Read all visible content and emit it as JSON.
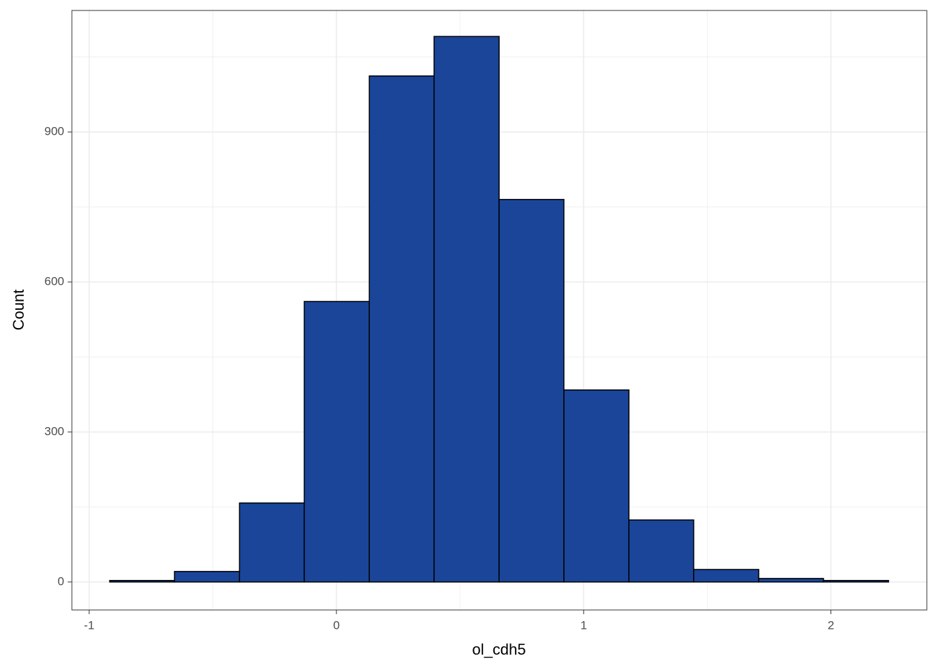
{
  "chart_data": {
    "type": "histogram",
    "x_label": "ol_cdh5",
    "y_label": "Count",
    "bins": [
      -0.917,
      -0.655,
      -0.392,
      -0.13,
      0.133,
      0.395,
      0.658,
      0.92,
      1.183,
      1.445,
      1.708,
      1.97,
      2.233
    ],
    "values": [
      3,
      21,
      158,
      561,
      1012,
      1091,
      765,
      384,
      124,
      25,
      7,
      3
    ],
    "color": "#1a4599",
    "edge_color": "#000000",
    "xlim": [
      -1.07,
      2.388
    ],
    "ylim": [
      -56,
      1143
    ],
    "xticks": [
      -1,
      0,
      1,
      2
    ],
    "yticks": [
      0,
      300,
      600,
      900
    ],
    "x_minor_grid": [
      -0.5,
      0.5,
      1.5
    ],
    "y_minor_grid": [
      150,
      450,
      750,
      1050
    ],
    "grid": true
  }
}
